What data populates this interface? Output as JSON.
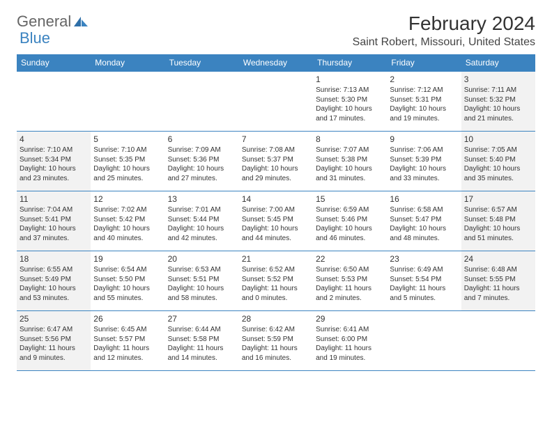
{
  "logo": {
    "text1": "General",
    "text2": "Blue",
    "accent": "#3b83c0"
  },
  "title": "February 2024",
  "location": "Saint Robert, Missouri, United States",
  "header_bg": "#3b83c0",
  "weekend_bg": "#f2f2f2",
  "days": [
    "Sunday",
    "Monday",
    "Tuesday",
    "Wednesday",
    "Thursday",
    "Friday",
    "Saturday"
  ],
  "weeks": [
    [
      null,
      null,
      null,
      null,
      {
        "n": "1",
        "sr": "Sunrise: 7:13 AM",
        "ss": "Sunset: 5:30 PM",
        "dl": "Daylight: 10 hours and 17 minutes."
      },
      {
        "n": "2",
        "sr": "Sunrise: 7:12 AM",
        "ss": "Sunset: 5:31 PM",
        "dl": "Daylight: 10 hours and 19 minutes."
      },
      {
        "n": "3",
        "sr": "Sunrise: 7:11 AM",
        "ss": "Sunset: 5:32 PM",
        "dl": "Daylight: 10 hours and 21 minutes."
      }
    ],
    [
      {
        "n": "4",
        "sr": "Sunrise: 7:10 AM",
        "ss": "Sunset: 5:34 PM",
        "dl": "Daylight: 10 hours and 23 minutes."
      },
      {
        "n": "5",
        "sr": "Sunrise: 7:10 AM",
        "ss": "Sunset: 5:35 PM",
        "dl": "Daylight: 10 hours and 25 minutes."
      },
      {
        "n": "6",
        "sr": "Sunrise: 7:09 AM",
        "ss": "Sunset: 5:36 PM",
        "dl": "Daylight: 10 hours and 27 minutes."
      },
      {
        "n": "7",
        "sr": "Sunrise: 7:08 AM",
        "ss": "Sunset: 5:37 PM",
        "dl": "Daylight: 10 hours and 29 minutes."
      },
      {
        "n": "8",
        "sr": "Sunrise: 7:07 AM",
        "ss": "Sunset: 5:38 PM",
        "dl": "Daylight: 10 hours and 31 minutes."
      },
      {
        "n": "9",
        "sr": "Sunrise: 7:06 AM",
        "ss": "Sunset: 5:39 PM",
        "dl": "Daylight: 10 hours and 33 minutes."
      },
      {
        "n": "10",
        "sr": "Sunrise: 7:05 AM",
        "ss": "Sunset: 5:40 PM",
        "dl": "Daylight: 10 hours and 35 minutes."
      }
    ],
    [
      {
        "n": "11",
        "sr": "Sunrise: 7:04 AM",
        "ss": "Sunset: 5:41 PM",
        "dl": "Daylight: 10 hours and 37 minutes."
      },
      {
        "n": "12",
        "sr": "Sunrise: 7:02 AM",
        "ss": "Sunset: 5:42 PM",
        "dl": "Daylight: 10 hours and 40 minutes."
      },
      {
        "n": "13",
        "sr": "Sunrise: 7:01 AM",
        "ss": "Sunset: 5:44 PM",
        "dl": "Daylight: 10 hours and 42 minutes."
      },
      {
        "n": "14",
        "sr": "Sunrise: 7:00 AM",
        "ss": "Sunset: 5:45 PM",
        "dl": "Daylight: 10 hours and 44 minutes."
      },
      {
        "n": "15",
        "sr": "Sunrise: 6:59 AM",
        "ss": "Sunset: 5:46 PM",
        "dl": "Daylight: 10 hours and 46 minutes."
      },
      {
        "n": "16",
        "sr": "Sunrise: 6:58 AM",
        "ss": "Sunset: 5:47 PM",
        "dl": "Daylight: 10 hours and 48 minutes."
      },
      {
        "n": "17",
        "sr": "Sunrise: 6:57 AM",
        "ss": "Sunset: 5:48 PM",
        "dl": "Daylight: 10 hours and 51 minutes."
      }
    ],
    [
      {
        "n": "18",
        "sr": "Sunrise: 6:55 AM",
        "ss": "Sunset: 5:49 PM",
        "dl": "Daylight: 10 hours and 53 minutes."
      },
      {
        "n": "19",
        "sr": "Sunrise: 6:54 AM",
        "ss": "Sunset: 5:50 PM",
        "dl": "Daylight: 10 hours and 55 minutes."
      },
      {
        "n": "20",
        "sr": "Sunrise: 6:53 AM",
        "ss": "Sunset: 5:51 PM",
        "dl": "Daylight: 10 hours and 58 minutes."
      },
      {
        "n": "21",
        "sr": "Sunrise: 6:52 AM",
        "ss": "Sunset: 5:52 PM",
        "dl": "Daylight: 11 hours and 0 minutes."
      },
      {
        "n": "22",
        "sr": "Sunrise: 6:50 AM",
        "ss": "Sunset: 5:53 PM",
        "dl": "Daylight: 11 hours and 2 minutes."
      },
      {
        "n": "23",
        "sr": "Sunrise: 6:49 AM",
        "ss": "Sunset: 5:54 PM",
        "dl": "Daylight: 11 hours and 5 minutes."
      },
      {
        "n": "24",
        "sr": "Sunrise: 6:48 AM",
        "ss": "Sunset: 5:55 PM",
        "dl": "Daylight: 11 hours and 7 minutes."
      }
    ],
    [
      {
        "n": "25",
        "sr": "Sunrise: 6:47 AM",
        "ss": "Sunset: 5:56 PM",
        "dl": "Daylight: 11 hours and 9 minutes."
      },
      {
        "n": "26",
        "sr": "Sunrise: 6:45 AM",
        "ss": "Sunset: 5:57 PM",
        "dl": "Daylight: 11 hours and 12 minutes."
      },
      {
        "n": "27",
        "sr": "Sunrise: 6:44 AM",
        "ss": "Sunset: 5:58 PM",
        "dl": "Daylight: 11 hours and 14 minutes."
      },
      {
        "n": "28",
        "sr": "Sunrise: 6:42 AM",
        "ss": "Sunset: 5:59 PM",
        "dl": "Daylight: 11 hours and 16 minutes."
      },
      {
        "n": "29",
        "sr": "Sunrise: 6:41 AM",
        "ss": "Sunset: 6:00 PM",
        "dl": "Daylight: 11 hours and 19 minutes."
      },
      null,
      null
    ]
  ]
}
